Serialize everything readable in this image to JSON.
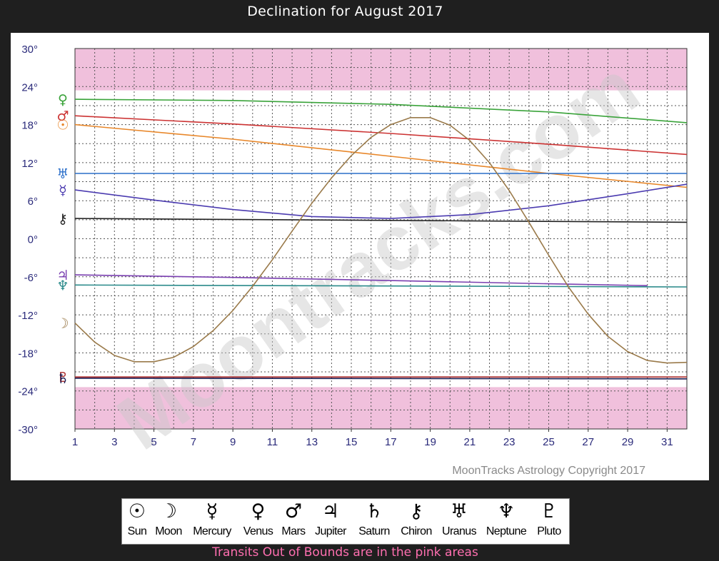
{
  "page": {
    "title": "Declination for August 2017",
    "footnote": "Transits Out of Bounds are in the pink areas"
  },
  "colors": {
    "oob_fill": "#f0c0dc",
    "grid": "#555555",
    "axis_text": "#2a2a7a",
    "watermark": "#c8c8c8",
    "copyright": "#8a8a8a"
  },
  "chart_data": {
    "type": "line",
    "title": "Declination for August 2017",
    "xlabel": "",
    "ylabel": "",
    "xlim": [
      1,
      32
    ],
    "ylim": [
      -30,
      30
    ],
    "x_ticks": [
      1,
      3,
      5,
      7,
      9,
      11,
      13,
      15,
      17,
      19,
      21,
      23,
      25,
      27,
      29,
      31
    ],
    "y_ticks": [
      30,
      24,
      18,
      12,
      6,
      0,
      -6,
      -12,
      -18,
      -24,
      -30
    ],
    "y_tick_labels": [
      "30°",
      "24°",
      "18°",
      "12°",
      "6°",
      "0°",
      "-6°",
      "-12°",
      "-18°",
      "-24°",
      "-30°"
    ],
    "grid": true,
    "out_of_bounds": {
      "upper": [
        23.4,
        30
      ],
      "lower": [
        -30,
        -23.4
      ]
    },
    "watermark": "Moontracks.com",
    "copyright": "MoonTracks Astrology Copyright 2017",
    "series": [
      {
        "name": "Venus",
        "glyph": "♀",
        "color": "#3aa33a",
        "x": [
          1,
          9,
          17,
          25,
          32
        ],
        "y": [
          22.0,
          21.8,
          21.2,
          20.0,
          18.3
        ]
      },
      {
        "name": "Mars",
        "glyph": "♂",
        "color": "#cc3333",
        "x": [
          1,
          9,
          17,
          25,
          32
        ],
        "y": [
          19.4,
          18.1,
          16.6,
          14.9,
          13.3
        ]
      },
      {
        "name": "Sun",
        "glyph": "☉",
        "color": "#e8872a",
        "x": [
          1,
          9,
          17,
          25,
          32
        ],
        "y": [
          18.0,
          15.7,
          13.0,
          10.3,
          8.1
        ]
      },
      {
        "name": "Uranus",
        "glyph": "♅",
        "color": "#2a6ec9",
        "x": [
          1,
          32
        ],
        "y": [
          10.3,
          10.3
        ]
      },
      {
        "name": "Mercury",
        "glyph": "☿",
        "color": "#4b3bb0",
        "x": [
          1,
          5,
          9,
          13,
          17,
          21,
          25,
          29,
          32
        ],
        "y": [
          7.7,
          6.1,
          4.6,
          3.5,
          3.2,
          3.8,
          5.2,
          7.1,
          8.6
        ]
      },
      {
        "name": "Chiron",
        "glyph": "⚷",
        "color": "#222222",
        "x": [
          1,
          32
        ],
        "y": [
          3.2,
          2.6
        ]
      },
      {
        "name": "Jupiter",
        "glyph": "♃",
        "color": "#7a3fb0",
        "x": [
          1,
          9,
          17,
          25,
          30
        ],
        "y": [
          -5.7,
          -6.1,
          -6.6,
          -7.1,
          -7.4
        ]
      },
      {
        "name": "Neptune",
        "glyph": "♆",
        "color": "#2a8a8a",
        "x": [
          1,
          32
        ],
        "y": [
          -7.3,
          -7.6
        ]
      },
      {
        "name": "Moon",
        "glyph": "☽",
        "color": "#9a7a4a",
        "x": [
          1,
          2,
          3,
          4,
          5,
          6,
          7,
          8,
          9,
          10,
          11,
          12,
          13,
          14,
          15,
          16,
          17,
          18,
          19,
          20,
          21,
          22,
          23,
          24,
          25,
          26,
          27,
          28,
          29,
          30,
          31,
          32
        ],
        "y": [
          -13.3,
          -16.3,
          -18.4,
          -19.4,
          -19.4,
          -18.7,
          -17.0,
          -14.5,
          -11.3,
          -7.5,
          -3.3,
          1.2,
          5.6,
          9.6,
          13.1,
          16.0,
          18.0,
          19.1,
          19.1,
          17.9,
          15.5,
          12.0,
          7.6,
          2.6,
          -2.6,
          -7.6,
          -11.9,
          -15.4,
          -17.8,
          -19.2,
          -19.6,
          -19.5
        ]
      },
      {
        "name": "Pluto",
        "glyph": "♇",
        "color": "#aa2a2a",
        "x": [
          1,
          32
        ],
        "y": [
          -21.8,
          -21.8
        ]
      },
      {
        "name": "Saturn",
        "glyph": "♄",
        "color": "#1a1a50",
        "x": [
          1,
          32
        ],
        "y": [
          -22.0,
          -22.1
        ]
      }
    ]
  },
  "legend": [
    {
      "glyph": "☉",
      "label": "Sun"
    },
    {
      "glyph": "☽",
      "label": "Moon"
    },
    {
      "glyph": "☿",
      "label": "Mercury"
    },
    {
      "glyph": "♀",
      "label": "Venus"
    },
    {
      "glyph": "♂",
      "label": "Mars"
    },
    {
      "glyph": "♃",
      "label": "Jupiter"
    },
    {
      "glyph": "♄",
      "label": "Saturn"
    },
    {
      "glyph": "⚷",
      "label": "Chiron"
    },
    {
      "glyph": "♅",
      "label": "Uranus"
    },
    {
      "glyph": "♆",
      "label": "Neptune"
    },
    {
      "glyph": "♇",
      "label": "Pluto"
    }
  ]
}
